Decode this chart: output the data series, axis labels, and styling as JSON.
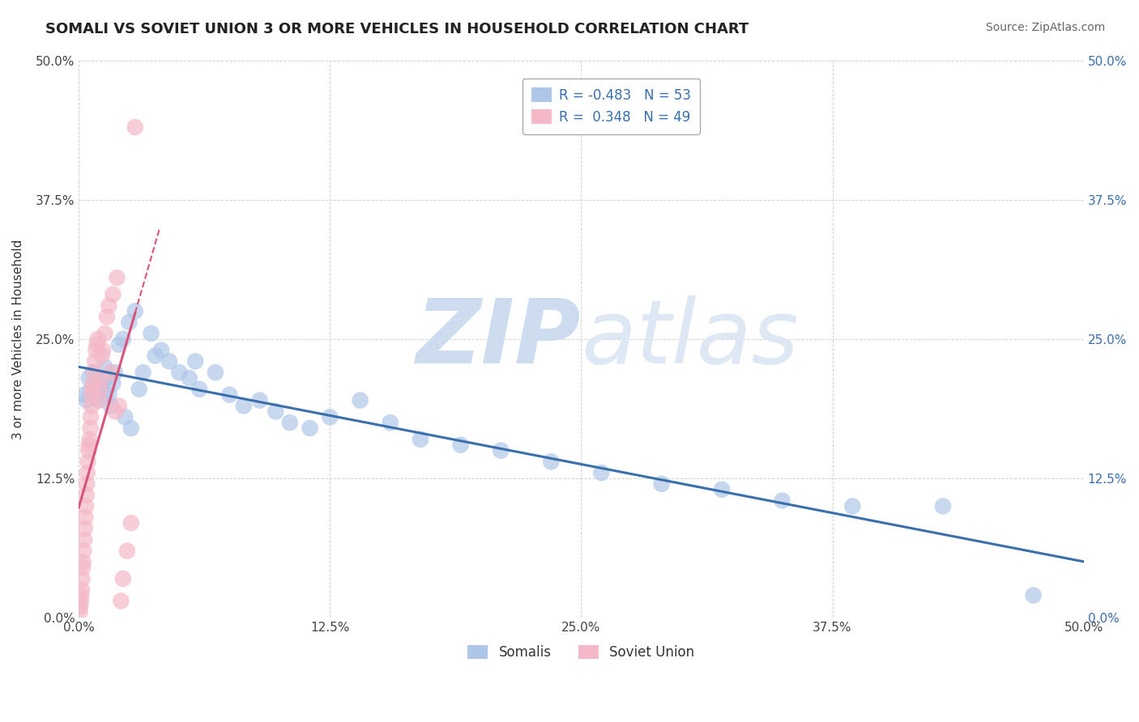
{
  "title": "SOMALI VS SOVIET UNION 3 OR MORE VEHICLES IN HOUSEHOLD CORRELATION CHART",
  "source": "Source: ZipAtlas.com",
  "ylabel": "3 or more Vehicles in Household",
  "x_tick_vals": [
    0.0,
    12.5,
    25.0,
    37.5,
    50.0
  ],
  "y_tick_vals": [
    0.0,
    12.5,
    25.0,
    37.5,
    50.0
  ],
  "xlim": [
    0.0,
    50.0
  ],
  "ylim": [
    0.0,
    50.0
  ],
  "somali_R": "-0.483",
  "somali_N": "53",
  "soviet_R": "0.348",
  "soviet_N": "49",
  "somali_color": "#aec6e8",
  "somali_line_color": "#3a6fad",
  "soviet_color": "#f4b8c8",
  "soviet_line_color": "#d9547a",
  "watermark_zip": "ZIP",
  "watermark_atlas": "atlas",
  "watermark_color": "#dce8f5",
  "somali_x": [
    0.3,
    0.4,
    0.5,
    0.6,
    0.7,
    0.8,
    0.9,
    1.0,
    1.1,
    1.2,
    1.3,
    1.4,
    1.5,
    1.6,
    1.7,
    1.8,
    2.0,
    2.2,
    2.5,
    2.8,
    3.2,
    3.6,
    4.1,
    4.5,
    5.0,
    5.5,
    6.0,
    6.8,
    7.5,
    8.2,
    9.0,
    9.8,
    10.5,
    11.5,
    12.5,
    14.0,
    15.5,
    17.0,
    19.0,
    21.0,
    23.5,
    26.0,
    29.0,
    32.0,
    35.0,
    38.5,
    43.0,
    47.5,
    2.3,
    2.6,
    3.0,
    3.8,
    5.8
  ],
  "somali_y": [
    20.0,
    19.5,
    21.5,
    20.5,
    22.0,
    21.0,
    20.5,
    19.5,
    21.0,
    20.0,
    22.5,
    21.5,
    20.0,
    19.0,
    21.0,
    22.0,
    24.5,
    25.0,
    26.5,
    27.5,
    22.0,
    25.5,
    24.0,
    23.0,
    22.0,
    21.5,
    20.5,
    22.0,
    20.0,
    19.0,
    19.5,
    18.5,
    17.5,
    17.0,
    18.0,
    19.5,
    17.5,
    16.0,
    15.5,
    15.0,
    14.0,
    13.0,
    12.0,
    11.5,
    10.5,
    10.0,
    10.0,
    2.0,
    18.0,
    17.0,
    20.5,
    23.5,
    23.0
  ],
  "soviet_x": [
    0.05,
    0.08,
    0.1,
    0.12,
    0.15,
    0.17,
    0.2,
    0.22,
    0.25,
    0.28,
    0.3,
    0.33,
    0.35,
    0.38,
    0.4,
    0.42,
    0.45,
    0.48,
    0.5,
    0.55,
    0.58,
    0.6,
    0.63,
    0.65,
    0.68,
    0.7,
    0.75,
    0.8,
    0.85,
    0.9,
    0.95,
    1.0,
    1.05,
    1.1,
    1.15,
    1.2,
    1.3,
    1.4,
    1.5,
    1.6,
    1.7,
    1.8,
    1.9,
    2.0,
    2.1,
    2.2,
    2.4,
    2.6,
    2.8
  ],
  "soviet_y": [
    0.5,
    1.0,
    1.5,
    2.0,
    2.5,
    3.5,
    4.5,
    5.0,
    6.0,
    7.0,
    8.0,
    9.0,
    10.0,
    11.0,
    12.0,
    13.0,
    14.0,
    15.0,
    15.5,
    16.0,
    17.0,
    18.0,
    19.0,
    20.0,
    20.5,
    21.0,
    22.0,
    23.0,
    24.0,
    24.5,
    25.0,
    19.5,
    20.5,
    21.5,
    23.5,
    24.0,
    25.5,
    27.0,
    28.0,
    22.0,
    29.0,
    18.5,
    30.5,
    19.0,
    1.5,
    3.5,
    6.0,
    8.5,
    44.0
  ]
}
